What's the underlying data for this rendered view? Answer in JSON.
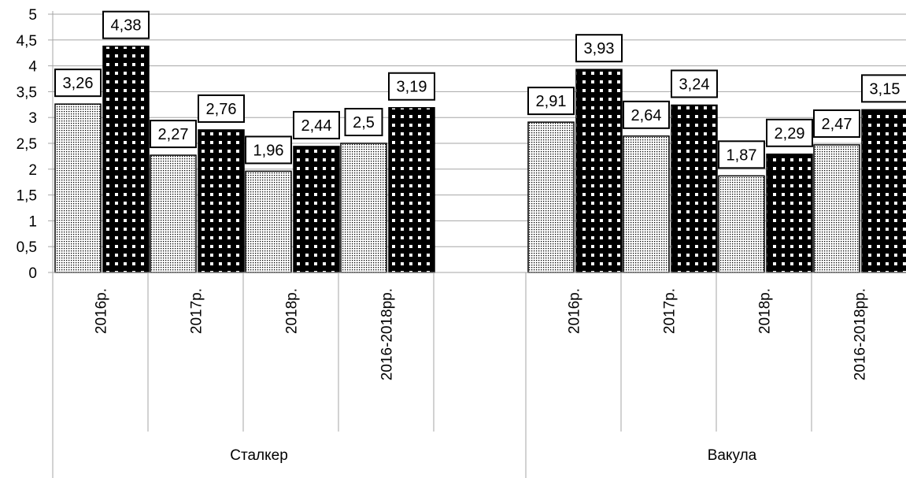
{
  "chart_data": {
    "type": "bar",
    "title": "",
    "xlabel": "",
    "ylabel": "",
    "ylim": [
      0,
      5
    ],
    "yticks": [
      "0",
      "0,5",
      "1",
      "1,5",
      "2",
      "2,5",
      "3",
      "3,5",
      "4",
      "4,5",
      "5"
    ],
    "grid": true,
    "legend": "none",
    "groups": [
      {
        "name": "Сталкер",
        "categories": [
          "2016р.",
          "2017р.",
          "2018р.",
          "2016-2018рр."
        ],
        "series": [
          {
            "pattern": "fine-dots",
            "values": [
              3.26,
              2.27,
              1.96,
              2.5
            ],
            "labels": [
              "3,26",
              "2,27",
              "1,96",
              "2,5"
            ]
          },
          {
            "pattern": "black-with-white-dots",
            "values": [
              4.38,
              2.76,
              2.44,
              3.19
            ],
            "labels": [
              "4,38",
              "2,76",
              "2,44",
              "3,19"
            ]
          }
        ]
      },
      {
        "name": "Вакула",
        "categories": [
          "2016р.",
          "2017р.",
          "2018р.",
          "2016-2018рр."
        ],
        "series": [
          {
            "pattern": "fine-dots",
            "values": [
              2.91,
              2.64,
              1.87,
              2.47
            ],
            "labels": [
              "2,91",
              "2,64",
              "1,87",
              "2,47"
            ]
          },
          {
            "pattern": "black-with-white-dots",
            "values": [
              3.93,
              3.24,
              2.29,
              3.15
            ],
            "labels": [
              "3,93",
              "3,24",
              "2,29",
              "3,15"
            ]
          }
        ]
      }
    ],
    "colors": {
      "grid": "#a6a6a6",
      "bar_dark": "#000000",
      "bar_light": "#ffffff"
    }
  }
}
